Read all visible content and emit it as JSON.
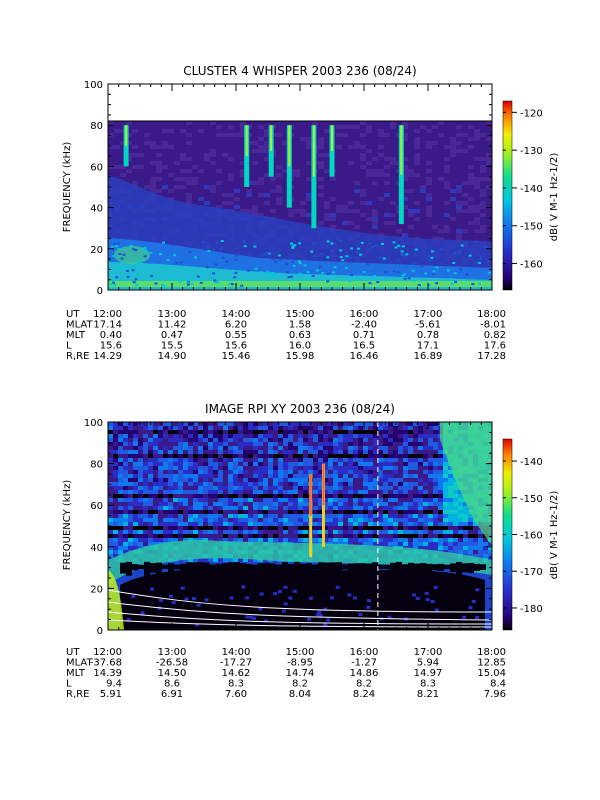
{
  "chart_data": [
    {
      "type": "heatmap",
      "title": "CLUSTER 4 WHISPER 2003 236 (08/24)",
      "ylabel": "FREQUENCY (kHz)",
      "yticks": [
        "0",
        "20",
        "40",
        "60",
        "80",
        "100"
      ],
      "ylim": [
        0,
        100
      ],
      "data_max_frequency": 80,
      "colorbar": {
        "label": "dB( V M-1 Hz-1/2)",
        "ticks": [
          "-120",
          "-130",
          "-140",
          "-150",
          "-160"
        ],
        "range": [
          -167,
          -117
        ]
      },
      "bursts": [
        {
          "time": "12:17",
          "fmin": 60,
          "fmax": 80
        },
        {
          "time": "14:10",
          "fmin": 50,
          "fmax": 80
        },
        {
          "time": "14:33",
          "fmin": 55,
          "fmax": 80
        },
        {
          "time": "14:50",
          "fmin": 40,
          "fmax": 80
        },
        {
          "time": "15:13",
          "fmin": 30,
          "fmax": 80
        },
        {
          "time": "15:30",
          "fmin": 55,
          "fmax": 80
        },
        {
          "time": "16:35",
          "fmin": 32,
          "fmax": 80
        }
      ],
      "table": {
        "row_labels": [
          "UT",
          "MLAT",
          "MLT",
          "L",
          "R,RE"
        ],
        "columns": [
          [
            "12:00",
            "17.14",
            "0.40",
            "15.6",
            "14.29"
          ],
          [
            "13:00",
            "11.42",
            "0.47",
            "15.5",
            "14.90"
          ],
          [
            "14:00",
            "6.20",
            "0.55",
            "15.6",
            "15.46"
          ],
          [
            "15:00",
            "1.58",
            "0.63",
            "16.0",
            "15.98"
          ],
          [
            "16:00",
            "-2.40",
            "0.71",
            "16.5",
            "16.46"
          ],
          [
            "17:00",
            "-5.61",
            "0.78",
            "17.1",
            "16.89"
          ],
          [
            "18:00",
            "-8.01",
            "0.82",
            "17.6",
            "17.28"
          ]
        ]
      }
    },
    {
      "type": "heatmap",
      "title": "IMAGE RPI XY 2003 236 (08/24)",
      "ylabel": "FREQUENCY (kHz)",
      "yticks": [
        "0",
        "20",
        "40",
        "60",
        "80",
        "100"
      ],
      "ylim": [
        0,
        100
      ],
      "colorbar": {
        "label": "dB( V M-1 Hz-1/2)",
        "ticks": [
          "-140",
          "-150",
          "-160",
          "-170",
          "-180"
        ],
        "range": [
          -186,
          -134
        ]
      },
      "dashed_marker_time": "16:13",
      "bursts": [
        {
          "time": "15:10",
          "fmin": 35,
          "fmax": 75
        },
        {
          "time": "15:22",
          "fmin": 40,
          "fmax": 80
        }
      ],
      "table": {
        "row_labels": [
          "UT",
          "MLAT",
          "MLT",
          "L",
          "R,RE"
        ],
        "columns": [
          [
            "12:00",
            "-37.68",
            "14.39",
            "9.4",
            "5.91"
          ],
          [
            "13:00",
            "-26.58",
            "14.50",
            "8.6",
            "6.91"
          ],
          [
            "14:00",
            "-17.27",
            "14.62",
            "8.3",
            "7.60"
          ],
          [
            "15:00",
            "-8.95",
            "14.74",
            "8.2",
            "8.04"
          ],
          [
            "16:00",
            "-1.27",
            "14.86",
            "8.2",
            "8.24"
          ],
          [
            "17:00",
            "5.94",
            "14.97",
            "8.3",
            "8.21"
          ],
          [
            "18:00",
            "12.85",
            "15.04",
            "8.4",
            "7.96"
          ]
        ]
      }
    }
  ]
}
